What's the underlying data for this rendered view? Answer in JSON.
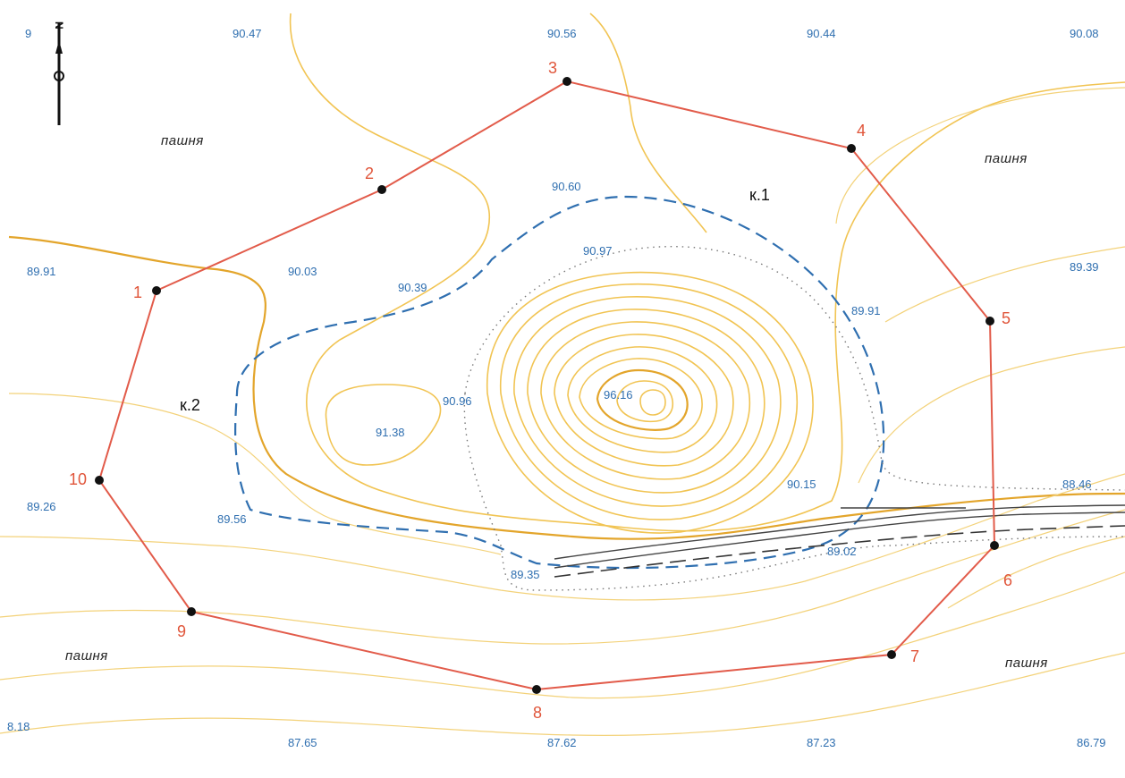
{
  "map": {
    "land_labels": [
      "пашня",
      "пашня",
      "пашня",
      "пашня"
    ],
    "key_labels": [
      "к.1",
      "к.2"
    ],
    "north_label": "N",
    "elevations": [
      "9",
      "90.47",
      "90.56",
      "90.44",
      "90.08",
      "89.91",
      "90.03",
      "89.39",
      "90.60",
      "90.97",
      "90.39",
      "89.91",
      "90.96",
      "96.16",
      "91.38",
      "89.26",
      "89.56",
      "90.15",
      "88.46",
      "89.35",
      "89.02",
      "8.18",
      "87.65",
      "87.62",
      "87.23",
      "86.79"
    ],
    "stations": [
      "1",
      "2",
      "3",
      "4",
      "5",
      "6",
      "7",
      "8",
      "9",
      "10"
    ],
    "colors": {
      "boundary": "#e25b4a",
      "contours": "#f1c453",
      "pit_outline": "#2f6fb0",
      "elevation_text": "#2f6fb0"
    }
  }
}
